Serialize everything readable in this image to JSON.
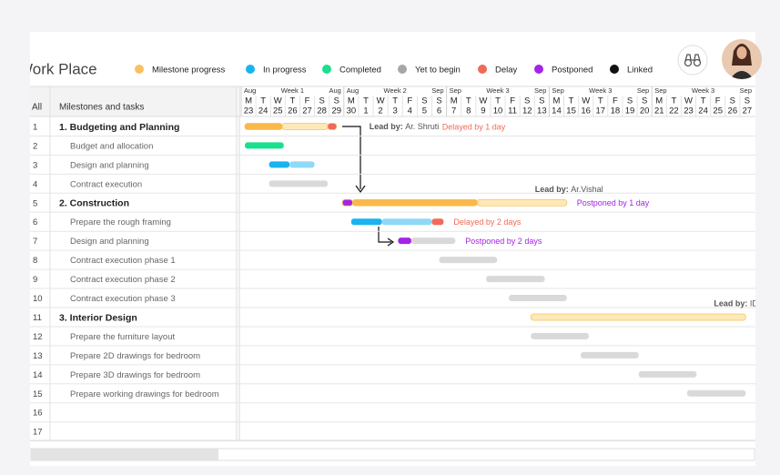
{
  "header": {
    "title": "Work Place"
  },
  "legend": [
    {
      "label": "Milestone progress",
      "color": "#f9c05f"
    },
    {
      "label": "In progress",
      "color": "#1ab3f0"
    },
    {
      "label": "Completed",
      "color": "#19e08e"
    },
    {
      "label": "Yet to begin",
      "color": "#a6a6a6"
    },
    {
      "label": "Delay",
      "color": "#f06a5a"
    },
    {
      "label": "Postponed",
      "color": "#a424e6"
    },
    {
      "label": "Linked",
      "color": "#111111"
    }
  ],
  "table": {
    "all": "All",
    "column": "Milestones and tasks"
  },
  "weeks": [
    {
      "start": "Aug",
      "label": "Week 1",
      "end": "Aug"
    },
    {
      "start": "Aug",
      "label": "Week 2",
      "end": "Sep"
    },
    {
      "start": "Sep",
      "label": "Week 3",
      "end": "Sep"
    },
    {
      "start": "Sep",
      "label": "Week 3",
      "end": "Sep"
    },
    {
      "start": "Sep",
      "label": "Week 3",
      "end": "Sep"
    }
  ],
  "days": [
    {
      "d": "M",
      "n": 23
    },
    {
      "d": "T",
      "n": 24
    },
    {
      "d": "W",
      "n": 25
    },
    {
      "d": "T",
      "n": 26
    },
    {
      "d": "F",
      "n": 27
    },
    {
      "d": "S",
      "n": 28
    },
    {
      "d": "S",
      "n": 29
    },
    {
      "d": "M",
      "n": 30
    },
    {
      "d": "T",
      "n": 1
    },
    {
      "d": "W",
      "n": 2
    },
    {
      "d": "T",
      "n": 3
    },
    {
      "d": "F",
      "n": 4
    },
    {
      "d": "S",
      "n": 5
    },
    {
      "d": "S",
      "n": 6
    },
    {
      "d": "M",
      "n": 7
    },
    {
      "d": "T",
      "n": 8
    },
    {
      "d": "W",
      "n": 9
    },
    {
      "d": "T",
      "n": 10
    },
    {
      "d": "F",
      "n": 11
    },
    {
      "d": "S",
      "n": 12
    },
    {
      "d": "S",
      "n": 13
    },
    {
      "d": "M",
      "n": 14
    },
    {
      "d": "T",
      "n": 15
    },
    {
      "d": "W",
      "n": 16
    },
    {
      "d": "T",
      "n": 17
    },
    {
      "d": "F",
      "n": 18
    },
    {
      "d": "S",
      "n": 19
    },
    {
      "d": "S",
      "n": 20
    },
    {
      "d": "M",
      "n": 21
    },
    {
      "d": "T",
      "n": 22
    },
    {
      "d": "W",
      "n": 23
    },
    {
      "d": "T",
      "n": 24
    },
    {
      "d": "F",
      "n": 25
    },
    {
      "d": "S",
      "n": 26
    },
    {
      "d": "S",
      "n": 27
    }
  ],
  "rows": [
    {
      "num": 1,
      "label": "1. Budgeting and Planning",
      "bold": true,
      "bars": [
        {
          "from": 0.25,
          "to": 2.8,
          "color": "#f9b949"
        },
        {
          "from": 2.8,
          "to": 5.9,
          "color": "#fde9b8"
        },
        {
          "from": 5.9,
          "to": 6.5,
          "color": "#f06a5a"
        }
      ],
      "lead_label": "Lead by:",
      "lead": "Ar. Shruti",
      "note": {
        "text": "Delayed by 1 day",
        "color": "#f06a5a"
      }
    },
    {
      "num": 2,
      "label": "Budget and allocation",
      "bars": [
        {
          "from": 0.25,
          "to": 2.9,
          "color": "#19e08e"
        }
      ]
    },
    {
      "num": 3,
      "label": "Design and planning",
      "bars": [
        {
          "from": 1.9,
          "to": 3.3,
          "color": "#1ab3f0"
        },
        {
          "from": 3.3,
          "to": 5.0,
          "color": "#8fd9f7"
        }
      ]
    },
    {
      "num": 4,
      "label": "Contract execution",
      "bars": [
        {
          "from": 1.9,
          "to": 5.9,
          "color": "#d9d9d9"
        }
      ]
    },
    {
      "num": 5,
      "label": "2. Construction",
      "bold": true,
      "bars": [
        {
          "from": 6.9,
          "to": 7.6,
          "color": "#a424e6"
        },
        {
          "from": 7.6,
          "to": 16.1,
          "color": "#f9b949"
        },
        {
          "from": 16.1,
          "to": 22.2,
          "color": "#fde9b8"
        }
      ],
      "lead_label": "Lead by:",
      "lead": "Ar.Vishal",
      "note": {
        "text": "Postponed  by 1 day",
        "color": "#a424e6"
      }
    },
    {
      "num": 6,
      "label": "Prepare the rough framing",
      "bars": [
        {
          "from": 7.5,
          "to": 9.6,
          "color": "#1ab3f0"
        },
        {
          "from": 9.6,
          "to": 13.0,
          "color": "#8fd9f7"
        },
        {
          "from": 13.0,
          "to": 13.8,
          "color": "#f06a5a"
        }
      ],
      "note": {
        "text": "Delayed by 2 days",
        "color": "#f06a5a"
      }
    },
    {
      "num": 7,
      "label": "Design and planning",
      "bars": [
        {
          "from": 10.7,
          "to": 11.6,
          "color": "#a424e6"
        },
        {
          "from": 11.6,
          "to": 14.6,
          "color": "#d9d9d9"
        }
      ],
      "note": {
        "text": "Postponed  by 2 days",
        "color": "#a424e6"
      }
    },
    {
      "num": 8,
      "label": "Contract execution phase 1",
      "bars": [
        {
          "from": 13.5,
          "to": 17.45,
          "color": "#d9d9d9"
        }
      ]
    },
    {
      "num": 9,
      "label": "Contract execution phase 2",
      "bars": [
        {
          "from": 16.7,
          "to": 20.7,
          "color": "#d9d9d9"
        }
      ]
    },
    {
      "num": 10,
      "label": "Contract execution phase 3",
      "bars": [
        {
          "from": 18.25,
          "to": 22.2,
          "color": "#d9d9d9"
        }
      ]
    },
    {
      "num": 11,
      "label": "3. Interior Design",
      "bold": true,
      "bars": [
        {
          "from": 19.75,
          "to": 34.4,
          "color": "#fde9b8"
        }
      ],
      "lead_label": "Lead by:",
      "lead": "ID. Sinha"
    },
    {
      "num": 12,
      "label": "Prepare the furniture layout",
      "bars": [
        {
          "from": 19.75,
          "to": 23.7,
          "color": "#d9d9d9"
        }
      ]
    },
    {
      "num": 13,
      "label": "Prepare 2D drawings for bedroom",
      "bars": [
        {
          "from": 23.15,
          "to": 27.1,
          "color": "#d9d9d9"
        }
      ]
    },
    {
      "num": 14,
      "label": "Prepare 3D drawings for bedroom",
      "bars": [
        {
          "from": 27.1,
          "to": 31.05,
          "color": "#d9d9d9"
        }
      ]
    },
    {
      "num": 15,
      "label": "Prepare working drawings for bedroom",
      "bars": [
        {
          "from": 30.4,
          "to": 34.4,
          "color": "#d9d9d9"
        }
      ]
    },
    {
      "num": 16
    },
    {
      "num": 17
    }
  ]
}
